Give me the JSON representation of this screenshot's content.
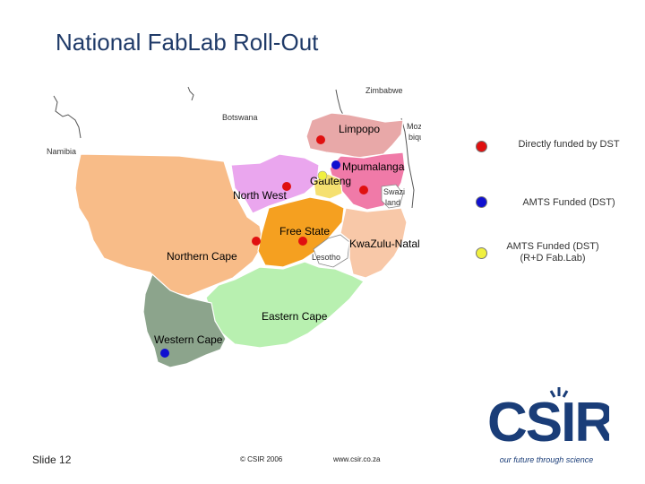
{
  "title": "National FabLab Roll-Out",
  "map": {
    "provinces": {
      "limpopo": "Limpopo",
      "mpumalanga": "Mpumalanga",
      "gauteng": "Gauteng",
      "north_west": "North West",
      "free_state": "Free State",
      "kwazulu_natal": "KwaZulu-Natal",
      "northern_cape": "Northern Cape",
      "eastern_cape": "Eastern Cape",
      "western_cape": "Western Cape"
    },
    "neighbours": {
      "zimbabwe": "Zimbabwe",
      "botswana": "Botswana",
      "mozambique_1": "Mozam",
      "mozambique_2": "bique",
      "namibia": "Namibia",
      "swaziland_1": "Swazi",
      "swaziland_2": "land",
      "lesotho": "Lesotho"
    },
    "colors": {
      "limpopo": "#e8a8a8",
      "mpumalanga": "#f07aa8",
      "gauteng": "#f5e070",
      "north_west": "#eaa6ee",
      "free_state": "#f5a020",
      "kwazulu_natal": "#f8c8a8",
      "northern_cape": "#f8bc88",
      "eastern_cape": "#b8f0b0",
      "western_cape": "#8ca48c"
    }
  },
  "legend": [
    {
      "label": "Directly funded by DST",
      "color": "#e01010"
    },
    {
      "label": "AMTS Funded (DST)",
      "color": "#1010d0"
    },
    {
      "label": "AMTS Funded (DST) (R+D Fab.Lab)",
      "color": "#f0f040"
    }
  ],
  "footer": {
    "slide": "Slide 12",
    "copyright": "© CSIR 2006",
    "website": "www.csir.co.za"
  },
  "logo": {
    "text": "CSIR",
    "tagline": "our future through science",
    "color": "#1a3d78"
  }
}
